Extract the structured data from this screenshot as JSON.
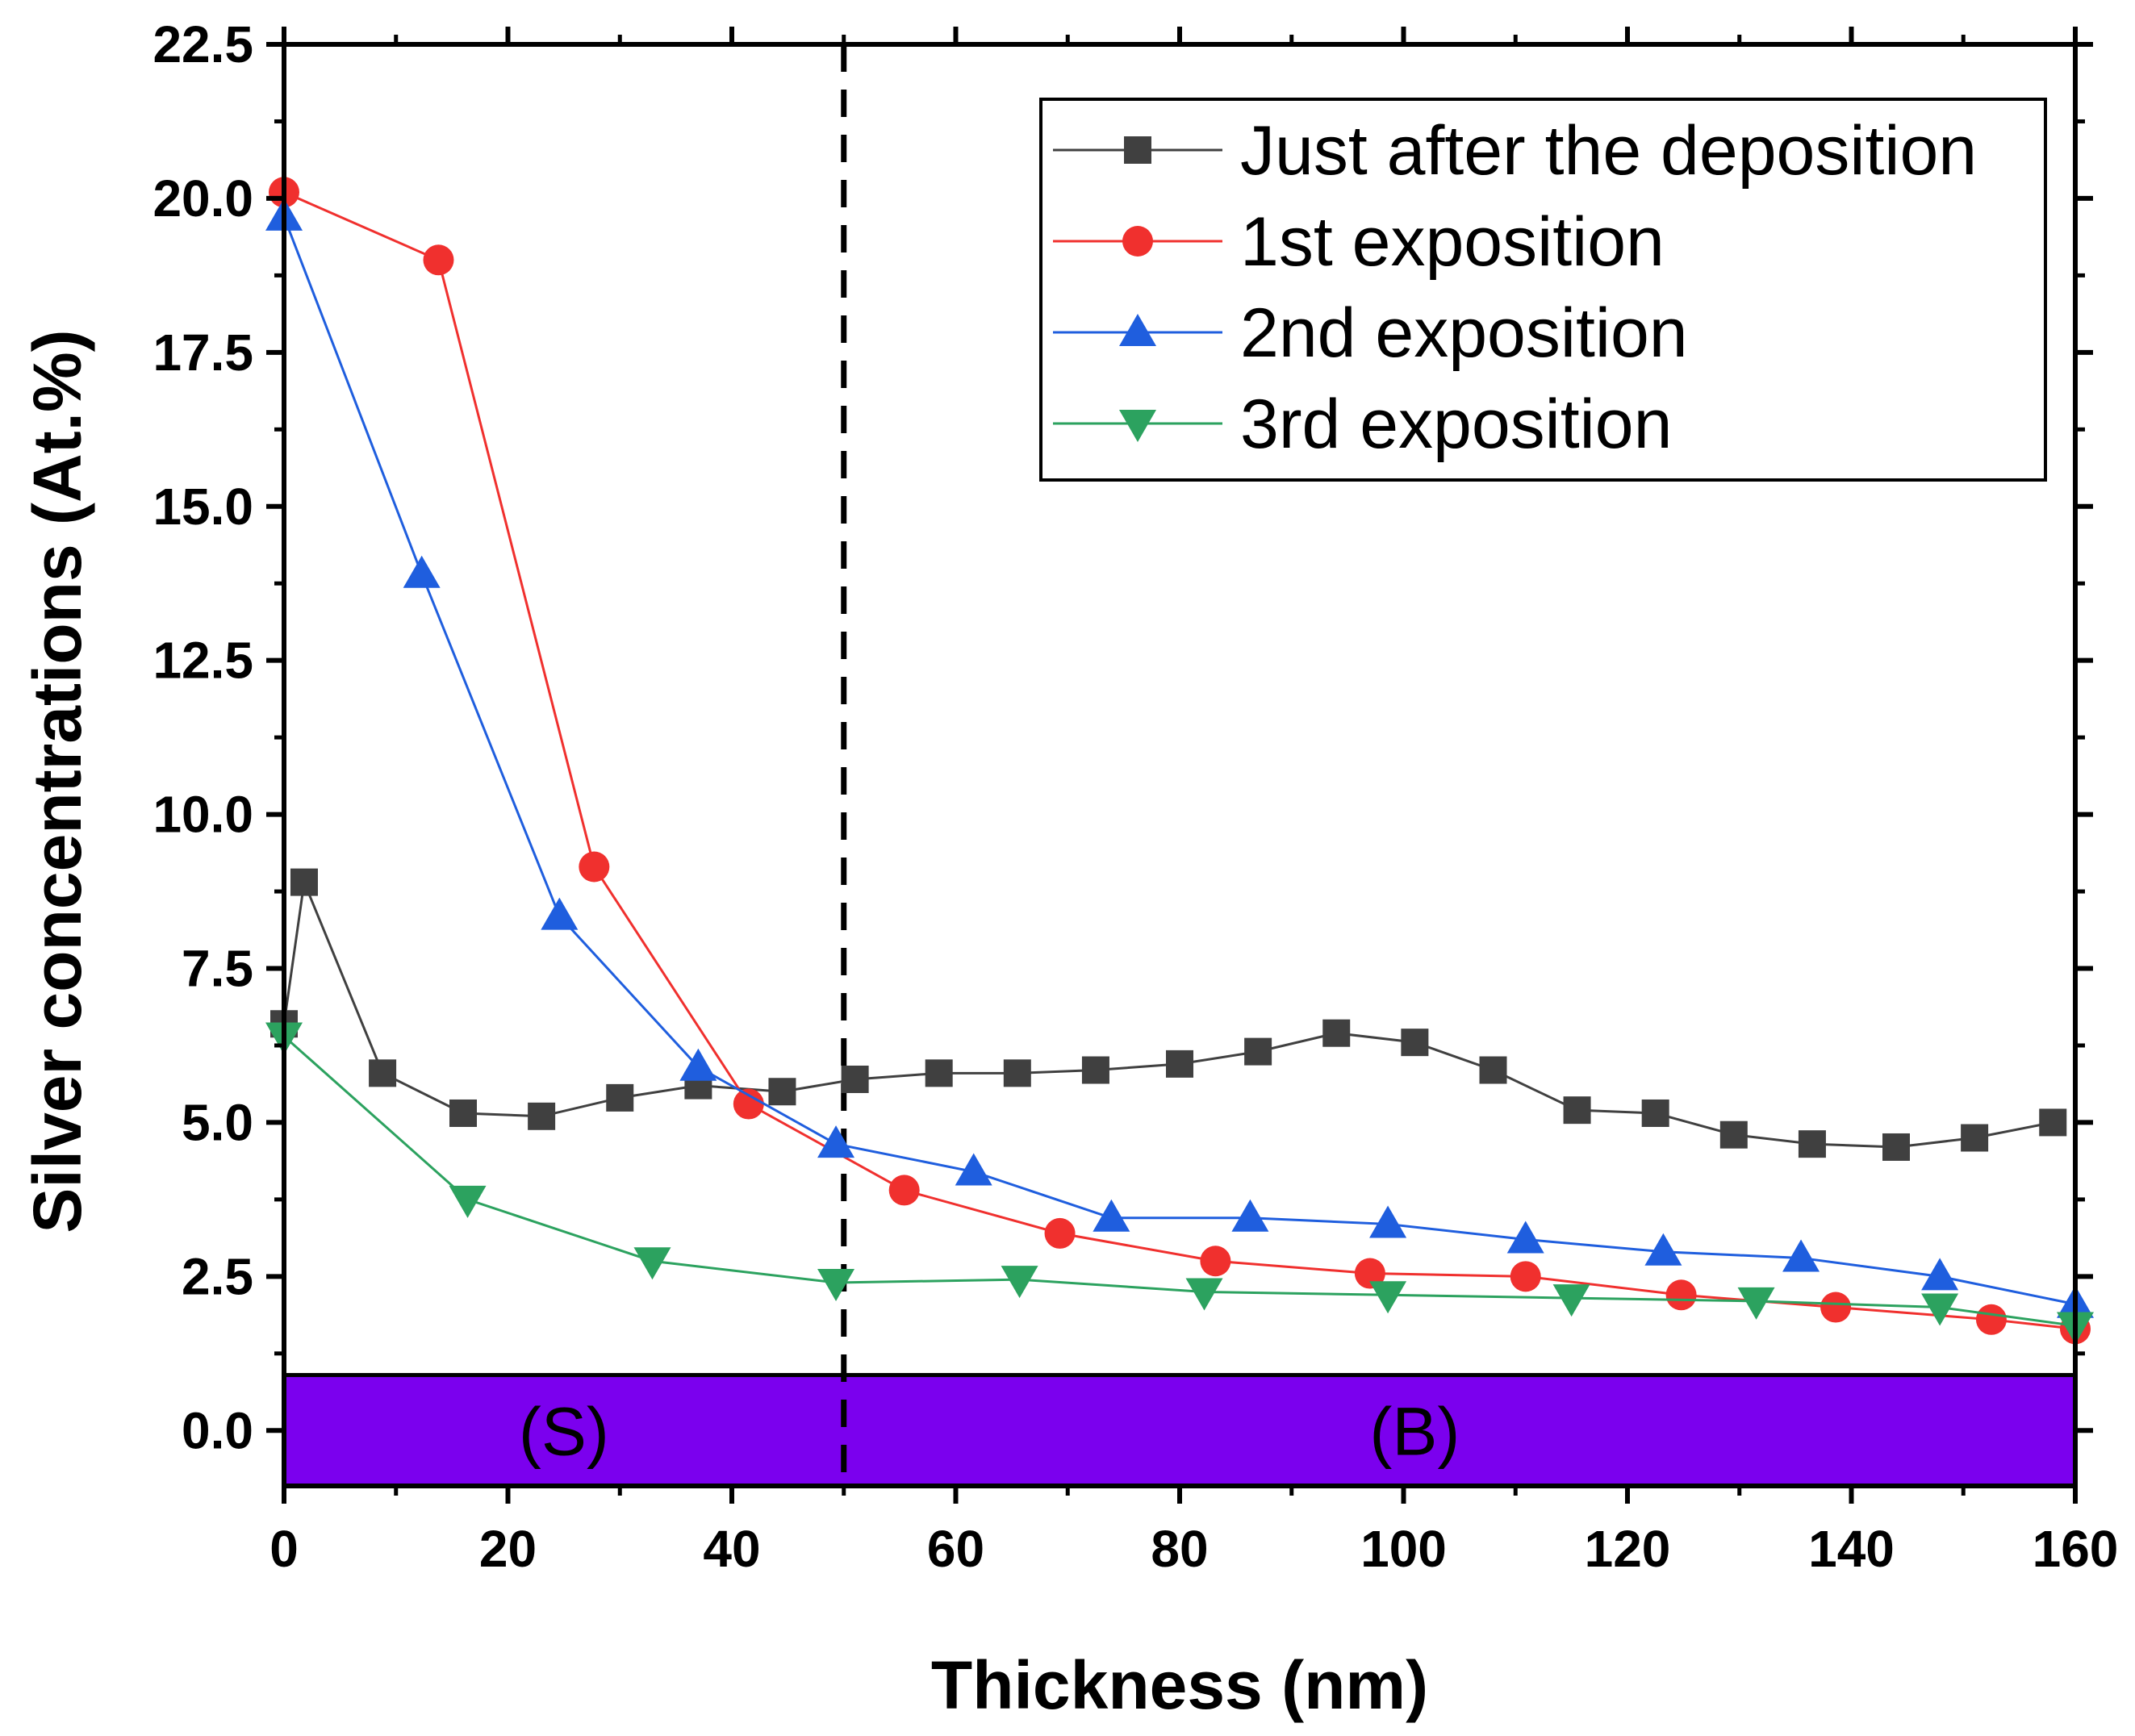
{
  "chart_data": {
    "type": "line",
    "title": "",
    "xlabel": "Thickness (nm)",
    "ylabel": "Silver concentrations (At.%)",
    "xlim": [
      0,
      160
    ],
    "ylim": [
      -0.9,
      22.5
    ],
    "xticks": [
      0,
      20,
      40,
      60,
      80,
      100,
      120,
      140,
      160
    ],
    "xtick_labels": [
      "0",
      "20",
      "40",
      "60",
      "80",
      "100",
      "120",
      "140",
      "160"
    ],
    "yticks": [
      0,
      2.5,
      5,
      7.5,
      10,
      12.5,
      15,
      17.5,
      20,
      22.5
    ],
    "ytick_labels": [
      "0.0",
      "2.5",
      "5.0",
      "7.5",
      "10.0",
      "12.5",
      "15.0",
      "17.5",
      "20.0",
      "22.5"
    ],
    "grid": false,
    "legend_position": "top-right",
    "divider": {
      "x": 50,
      "style": "dashed",
      "color": "#000000"
    },
    "band": {
      "y_from": -0.9,
      "y_to": 0.9,
      "color": "#7b00ee"
    },
    "regions": [
      {
        "label": "(S)",
        "x": 25,
        "y": 0
      },
      {
        "label": "(B)",
        "x": 101,
        "y": 0
      }
    ],
    "series": [
      {
        "name": "Just after the deposition",
        "color": "#404040",
        "marker": "square",
        "x": [
          0,
          1.8,
          8.8,
          16,
          23,
          30,
          37,
          44.5,
          51,
          58.5,
          65.5,
          72.5,
          80,
          87,
          94,
          101,
          108,
          115.5,
          122.5,
          129.5,
          136.5,
          144,
          151,
          158
        ],
        "values": [
          6.6,
          8.9,
          5.8,
          5.15,
          5.1,
          5.4,
          5.6,
          5.5,
          5.7,
          5.8,
          5.8,
          5.85,
          5.95,
          6.15,
          6.45,
          6.3,
          5.85,
          5.2,
          5.15,
          4.8,
          4.65,
          4.6,
          4.75,
          5.0
        ]
      },
      {
        "name": "1st exposition",
        "color": "#f0302e",
        "marker": "circle",
        "x": [
          0,
          13.8,
          27.7,
          41.5,
          55.4,
          69.3,
          83.2,
          97,
          110.9,
          124.8,
          138.6,
          152.5,
          160
        ],
        "values": [
          20.1,
          19.0,
          9.15,
          5.3,
          3.9,
          3.2,
          2.75,
          2.55,
          2.5,
          2.2,
          2.0,
          1.8,
          1.65
        ]
      },
      {
        "name": "2nd exposition",
        "color": "#1f5ede",
        "marker": "triangle-up",
        "x": [
          0,
          12.3,
          24.6,
          37,
          49.3,
          61.6,
          73.9,
          86.3,
          98.6,
          110.9,
          123.2,
          135.5,
          147.9,
          160
        ],
        "values": [
          19.7,
          13.9,
          8.35,
          5.9,
          4.65,
          4.2,
          3.45,
          3.45,
          3.35,
          3.1,
          2.9,
          2.8,
          2.5,
          2.05
        ]
      },
      {
        "name": "3rd exposition",
        "color": "#2ca25f",
        "marker": "triangle-down",
        "x": [
          0,
          16.4,
          32.9,
          49.3,
          65.7,
          82.2,
          98.6,
          115,
          131.5,
          147.9,
          160
        ],
        "values": [
          6.4,
          3.75,
          2.75,
          2.4,
          2.45,
          2.25,
          2.2,
          2.15,
          2.1,
          2.0,
          1.7
        ]
      }
    ]
  }
}
